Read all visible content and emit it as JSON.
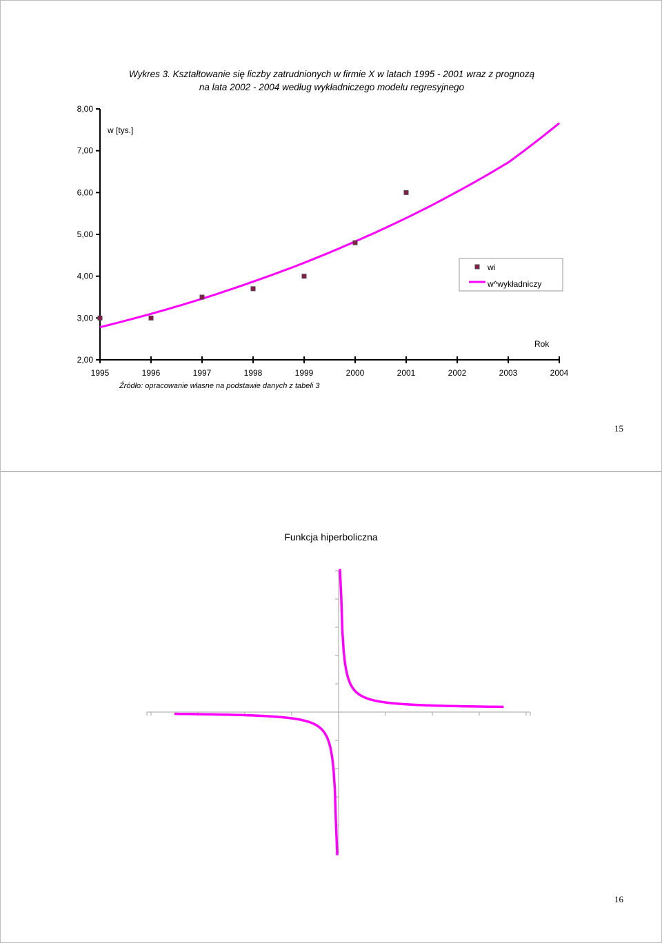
{
  "pages": [
    {
      "title_line1": "Wykres 3. Kształtowanie się liczby zatrudnionych w firmie X w latach 1995 - 2001 wraz z prognozą",
      "title_line2": "na lata 2002 - 2004 według wykładniczego modelu regresyjnego",
      "source": "Źródło: opracowanie własne na podstawie danych z tabeli 3",
      "page_number": "15"
    },
    {
      "title": "Funkcja hiperboliczna",
      "page_number": "16"
    }
  ],
  "colors": {
    "curve": "#ff00ff",
    "marker_fill": "#8b1a4a",
    "marker_border": "#4a4a4a",
    "axis": "#000000",
    "axis_gray": "#a0a0a0"
  },
  "chart_data": [
    {
      "type": "scatter",
      "title": "Wykres 3. Kształtowanie się liczby zatrudnionych w firmie X w latach 1995 - 2001 wraz z prognozą na lata 2002 - 2004 według wykładniczego modelu regresyjnego",
      "ylabel": "w [tys.]",
      "xlabel": "Rok",
      "ylim": [
        2,
        8
      ],
      "yticks": [
        "2,00",
        "3,00",
        "4,00",
        "5,00",
        "6,00",
        "7,00",
        "8,00"
      ],
      "x_categories": [
        "1995",
        "1996",
        "1997",
        "1998",
        "1999",
        "2000",
        "2001",
        "2002",
        "2003",
        "2004"
      ],
      "legend_position": "right",
      "series": [
        {
          "name": "wi",
          "kind": "markers",
          "x": [
            1995,
            1996,
            1997,
            1998,
            1999,
            2000,
            2001
          ],
          "y": [
            3.0,
            3.0,
            3.5,
            3.7,
            4.0,
            4.8,
            6.0
          ]
        },
        {
          "name": "w^wykładniczy",
          "kind": "line",
          "x": [
            1995,
            1996,
            1997,
            1998,
            1999,
            2000,
            2001,
            2002,
            2003,
            2004
          ],
          "y": [
            2.78,
            3.1,
            3.46,
            3.87,
            4.32,
            4.83,
            5.39,
            6.02,
            6.72,
            7.66
          ]
        }
      ]
    },
    {
      "type": "line",
      "title": "Funkcja hiperboliczna",
      "function": "y = a / x",
      "xlim": [
        -4,
        4
      ],
      "ylim": [
        -5,
        5
      ],
      "grid": false
    }
  ]
}
